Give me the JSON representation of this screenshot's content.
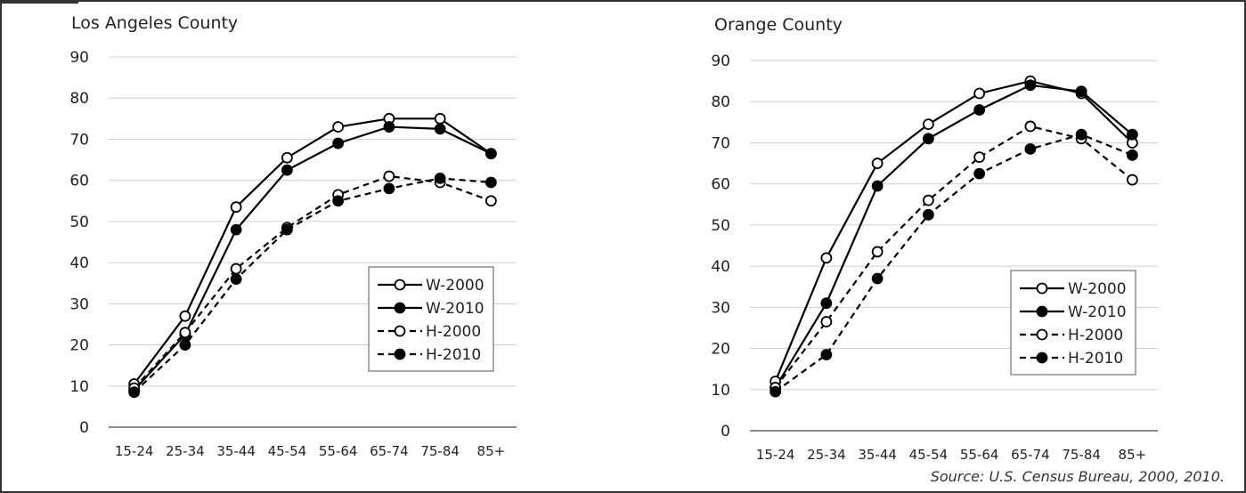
{
  "source_note": "Source: U.S. Census Bureau, 2000, 2010.",
  "chart_data": [
    {
      "type": "line",
      "title": "Los Angeles County",
      "categories": [
        "15-24",
        "25-34",
        "35-44",
        "45-54",
        "55-64",
        "65-74",
        "75-84",
        "85+"
      ],
      "ylim": [
        0,
        90
      ],
      "yticks": [
        0,
        10,
        20,
        30,
        40,
        50,
        60,
        70,
        80,
        90
      ],
      "grid": true,
      "legend_position": "lower-right",
      "series": [
        {
          "name": "W-2000",
          "style": "solid",
          "marker": "open",
          "values": [
            10.5,
            27,
            53.5,
            65.5,
            73,
            75,
            75,
            66.5
          ]
        },
        {
          "name": "W-2010",
          "style": "solid",
          "marker": "filled",
          "values": [
            9,
            22.5,
            48,
            62.5,
            69,
            73,
            72.5,
            66.5
          ]
        },
        {
          "name": "H-2000",
          "style": "dashed",
          "marker": "open",
          "values": [
            9.5,
            23,
            38.5,
            48.5,
            56.5,
            61,
            59.5,
            55
          ]
        },
        {
          "name": "H-2010",
          "style": "dashed",
          "marker": "filled",
          "values": [
            8.5,
            20,
            36,
            48,
            55,
            58,
            60.5,
            59.5
          ]
        }
      ]
    },
    {
      "type": "line",
      "title": "Orange County",
      "categories": [
        "15-24",
        "25-34",
        "35-44",
        "45-54",
        "55-64",
        "65-74",
        "75-84",
        "85+"
      ],
      "ylim": [
        0,
        90
      ],
      "yticks": [
        0,
        10,
        20,
        30,
        40,
        50,
        60,
        70,
        80,
        90
      ],
      "grid": true,
      "legend_position": "lower-right",
      "series": [
        {
          "name": "W-2000",
          "style": "solid",
          "marker": "open",
          "values": [
            12,
            42,
            65,
            74.5,
            82,
            85,
            82,
            70
          ]
        },
        {
          "name": "W-2010",
          "style": "solid",
          "marker": "filled",
          "values": [
            10.5,
            31,
            59.5,
            71,
            78,
            84,
            82.5,
            72
          ]
        },
        {
          "name": "H-2000",
          "style": "dashed",
          "marker": "open",
          "values": [
            10.5,
            26.5,
            43.5,
            56,
            66.5,
            74,
            71,
            61
          ]
        },
        {
          "name": "H-2010",
          "style": "dashed",
          "marker": "filled",
          "values": [
            9.5,
            18.5,
            37,
            52.5,
            62.5,
            68.5,
            72,
            67
          ]
        }
      ]
    }
  ]
}
